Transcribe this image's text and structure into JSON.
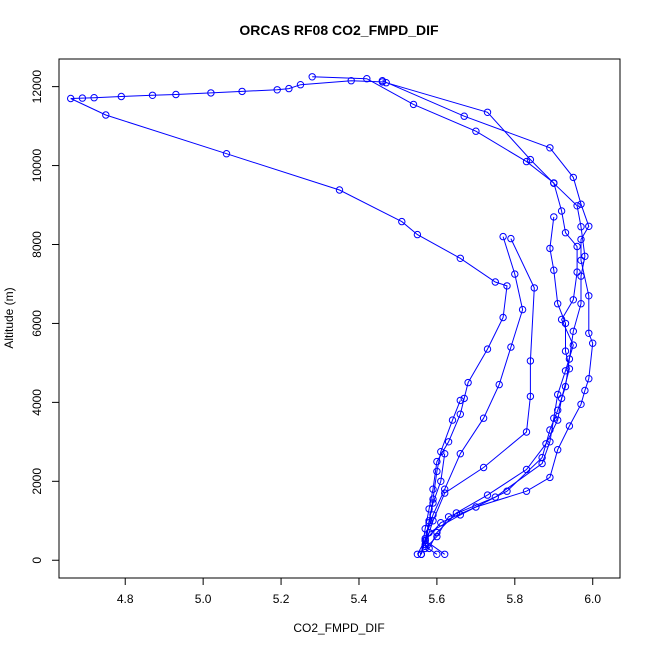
{
  "chart_data": {
    "type": "line",
    "title": "ORCAS RF08 CO2_FMPD_DIF",
    "xlabel": "CO2_FMPD_DIF",
    "ylabel": "Altitude (m)",
    "xlim": [
      4.63,
      6.07
    ],
    "ylim": [
      -450,
      12700
    ],
    "xticks": [
      {
        "value": 4.8,
        "label": "4.8"
      },
      {
        "value": 5.0,
        "label": "5.0"
      },
      {
        "value": 5.2,
        "label": "5.2"
      },
      {
        "value": 5.4,
        "label": "5.4"
      },
      {
        "value": 5.6,
        "label": "5.6"
      },
      {
        "value": 5.8,
        "label": "5.8"
      },
      {
        "value": 6.0,
        "label": "6.0"
      }
    ],
    "yticks": [
      {
        "value": 0,
        "label": "0"
      },
      {
        "value": 2000,
        "label": "2000"
      },
      {
        "value": 4000,
        "label": "4000"
      },
      {
        "value": 6000,
        "label": "6000"
      },
      {
        "value": 8000,
        "label": "8000"
      },
      {
        "value": 10000,
        "label": "10000"
      },
      {
        "value": 12000,
        "label": "12000"
      }
    ],
    "grid": false,
    "marker": "open-circle",
    "color": "#0000ff",
    "series": [
      {
        "points": [
          [
            5.47,
            12100
          ],
          [
            5.73,
            11350
          ],
          [
            5.84,
            10150
          ],
          [
            5.9,
            9550
          ],
          [
            5.96,
            8980
          ],
          [
            5.97,
            8450
          ],
          [
            5.98,
            7700
          ],
          [
            5.97,
            7200
          ],
          [
            5.97,
            6500
          ],
          [
            5.95,
            5800
          ],
          [
            5.94,
            5100
          ],
          [
            5.93,
            4400
          ],
          [
            5.91,
            3800
          ],
          [
            5.89,
            3300
          ],
          [
            5.87,
            2600
          ],
          [
            5.78,
            1750
          ],
          [
            5.66,
            1150
          ],
          [
            5.58,
            700
          ],
          [
            5.55,
            150
          ]
        ]
      },
      {
        "points": [
          [
            5.46,
            12150
          ],
          [
            5.67,
            11250
          ],
          [
            5.89,
            10450
          ],
          [
            5.95,
            9700
          ],
          [
            5.97,
            9020
          ],
          [
            5.99,
            8460
          ],
          [
            5.97,
            8130
          ],
          [
            5.97,
            7600
          ],
          [
            5.99,
            6700
          ],
          [
            5.99,
            5750
          ],
          [
            6.0,
            5500
          ],
          [
            5.99,
            4600
          ],
          [
            5.98,
            4300
          ],
          [
            5.97,
            3950
          ],
          [
            5.94,
            3400
          ],
          [
            5.91,
            2800
          ],
          [
            5.89,
            2100
          ],
          [
            5.83,
            1750
          ],
          [
            5.7,
            1350
          ],
          [
            5.61,
            950
          ],
          [
            5.57,
            500
          ],
          [
            5.56,
            150
          ]
        ]
      },
      {
        "points": [
          [
            5.46,
            12120
          ],
          [
            5.38,
            12150
          ],
          [
            5.25,
            12050
          ],
          [
            5.22,
            11950
          ],
          [
            5.19,
            11920
          ],
          [
            5.1,
            11880
          ],
          [
            5.02,
            11840
          ],
          [
            4.93,
            11800
          ],
          [
            4.87,
            11780
          ],
          [
            4.79,
            11750
          ],
          [
            4.72,
            11720
          ],
          [
            4.69,
            11710
          ],
          [
            4.66,
            11700
          ],
          [
            4.75,
            11280
          ],
          [
            5.06,
            10300
          ],
          [
            5.35,
            9380
          ],
          [
            5.51,
            8580
          ],
          [
            5.55,
            8250
          ],
          [
            5.66,
            7650
          ],
          [
            5.75,
            7050
          ],
          [
            5.78,
            6950
          ],
          [
            5.77,
            6150
          ],
          [
            5.73,
            5350
          ],
          [
            5.68,
            4500
          ],
          [
            5.67,
            4100
          ],
          [
            5.66,
            3700
          ],
          [
            5.63,
            3000
          ],
          [
            5.6,
            2500
          ],
          [
            5.59,
            1800
          ],
          [
            5.58,
            1300
          ],
          [
            5.57,
            800
          ],
          [
            5.56,
            150
          ]
        ]
      },
      {
        "points": [
          [
            5.28,
            12250
          ],
          [
            5.42,
            12200
          ],
          [
            5.54,
            11550
          ],
          [
            5.7,
            10870
          ],
          [
            5.83,
            10100
          ],
          [
            5.9,
            9560
          ],
          [
            5.92,
            8850
          ],
          [
            5.93,
            8300
          ],
          [
            5.96,
            7950
          ],
          [
            5.96,
            7300
          ],
          [
            5.95,
            6600
          ],
          [
            5.92,
            6100
          ],
          [
            5.95,
            5450
          ],
          [
            5.93,
            4800
          ],
          [
            5.91,
            4200
          ],
          [
            5.9,
            3600
          ],
          [
            5.89,
            3000
          ],
          [
            5.87,
            2450
          ],
          [
            5.75,
            1600
          ],
          [
            5.63,
            1100
          ],
          [
            5.6,
            600
          ],
          [
            5.57,
            300
          ]
        ]
      },
      {
        "points": [
          [
            5.9,
            8700
          ],
          [
            5.89,
            7900
          ],
          [
            5.9,
            7350
          ],
          [
            5.91,
            6500
          ],
          [
            5.93,
            6000
          ],
          [
            5.93,
            5300
          ],
          [
            5.94,
            4850
          ],
          [
            5.92,
            4100
          ],
          [
            5.91,
            3550
          ],
          [
            5.88,
            2950
          ],
          [
            5.83,
            2300
          ],
          [
            5.73,
            1650
          ],
          [
            5.65,
            1200
          ],
          [
            5.6,
            700
          ],
          [
            5.58,
            300
          ]
        ]
      },
      {
        "points": [
          [
            5.77,
            8200
          ],
          [
            5.8,
            7250
          ],
          [
            5.82,
            6350
          ],
          [
            5.79,
            5400
          ],
          [
            5.76,
            4450
          ],
          [
            5.72,
            3600
          ],
          [
            5.66,
            2700
          ],
          [
            5.62,
            1800
          ],
          [
            5.59,
            1150
          ],
          [
            5.57,
            550
          ],
          [
            5.56,
            150
          ]
        ]
      },
      {
        "points": [
          [
            5.79,
            8150
          ],
          [
            5.85,
            6900
          ],
          [
            5.84,
            5050
          ],
          [
            5.84,
            4150
          ],
          [
            5.83,
            3250
          ],
          [
            5.72,
            2350
          ],
          [
            5.62,
            1700
          ],
          [
            5.59,
            1000
          ],
          [
            5.57,
            400
          ]
        ]
      },
      {
        "points": [
          [
            5.66,
            4050
          ],
          [
            5.64,
            3550
          ],
          [
            5.61,
            2750
          ],
          [
            5.6,
            2250
          ],
          [
            5.59,
            1550
          ],
          [
            5.58,
            950
          ],
          [
            5.57,
            350
          ],
          [
            5.6,
            150
          ]
        ]
      },
      {
        "points": [
          [
            5.62,
            2700
          ],
          [
            5.61,
            2000
          ],
          [
            5.59,
            1450
          ],
          [
            5.58,
            1000
          ],
          [
            5.57,
            500
          ],
          [
            5.62,
            150
          ]
        ]
      }
    ]
  }
}
